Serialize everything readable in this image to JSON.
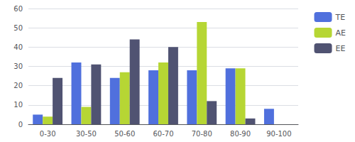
{
  "chart_data": {
    "type": "bar",
    "categories": [
      "0-30",
      "30-50",
      "50-60",
      "60-70",
      "70-80",
      "80-90",
      "90-100"
    ],
    "series": [
      {
        "name": "TE",
        "values": [
          5,
          32,
          24,
          28,
          28,
          29,
          8
        ]
      },
      {
        "name": "AE",
        "values": [
          4,
          9,
          27,
          32,
          53,
          29,
          0
        ]
      },
      {
        "name": "EE",
        "values": [
          24,
          31,
          44,
          40,
          12,
          3,
          0
        ]
      }
    ],
    "ylim": [
      0,
      60
    ],
    "yticks": [
      0,
      10,
      20,
      30,
      40,
      50,
      60
    ],
    "grid": true,
    "legend": "right"
  }
}
